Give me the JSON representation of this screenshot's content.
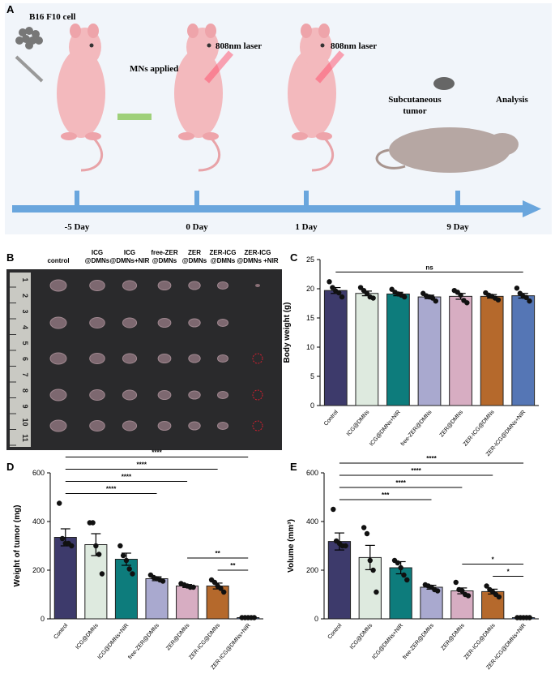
{
  "panel_labels": [
    "A",
    "B",
    "C",
    "D",
    "E"
  ],
  "schematic": {
    "cell_label": "B16 F10 cell",
    "mns_label": "MNs applied",
    "laser_labels": [
      "808nm laser",
      "808nm laser"
    ],
    "tumor_label": [
      "Subcutaneous",
      "tumor"
    ],
    "analysis_label": "Analysis",
    "timeline": [
      "-5 Day",
      "0 Day",
      "1 Day",
      "9 Day"
    ]
  },
  "photo": {
    "columns": [
      [
        "control"
      ],
      [
        "ICG",
        "@DMNs"
      ],
      [
        "ICG",
        "@DMNs+NIR"
      ],
      [
        "free-ZER",
        "@DMNs"
      ],
      [
        "ZER",
        "@DMNs"
      ],
      [
        "ZER-ICG",
        "@DMNs"
      ],
      [
        "ZER-ICG",
        "@DMNs +NIR"
      ]
    ],
    "ruler": [
      "1",
      "2",
      "3",
      "4",
      "5",
      "6",
      "7",
      "8",
      "9",
      "10",
      "11"
    ]
  },
  "chart_data": [
    {
      "type": "bar",
      "y_label": "Body weight (g)",
      "categories": [
        "Control",
        "ICG@DMNs",
        "ICG@DMNs+NIR",
        "free-ZER@DMNs",
        "ZER@DMNs",
        "ZER-ICG@DMNs",
        "ZER-ICG@DMNs+NIR"
      ],
      "colors": [
        "#3d3a6b",
        "#deeadf",
        "#0d7c7c",
        "#a9a9cf",
        "#d7adc2",
        "#b5692c",
        "#5576b5"
      ],
      "values": [
        19.7,
        19.2,
        19.1,
        18.6,
        18.7,
        18.7,
        18.8
      ],
      "errors": [
        0.5,
        0.4,
        0.3,
        0.3,
        0.5,
        0.3,
        0.4
      ],
      "points": [
        [
          21.2,
          20.2,
          19.6,
          19.3,
          18.6
        ],
        [
          20.2,
          19.7,
          19.2,
          18.6,
          18.4
        ],
        [
          19.9,
          19.4,
          19.1,
          18.9,
          18.6
        ],
        [
          19.2,
          18.8,
          18.6,
          18.4,
          17.9
        ],
        [
          19.7,
          19.4,
          18.9,
          18.0,
          17.6
        ],
        [
          19.3,
          18.9,
          18.7,
          18.4,
          18.1
        ],
        [
          20.1,
          19.2,
          18.7,
          18.5,
          17.9
        ]
      ],
      "ylim": [
        0,
        25
      ],
      "yticks": [
        0,
        5,
        10,
        15,
        20,
        25
      ],
      "annotations": [
        {
          "between": [
            "Control",
            "ZER-ICG@DMNs+NIR"
          ],
          "label": "ns"
        }
      ]
    },
    {
      "type": "bar",
      "y_label": "Weight of tumor (mg)",
      "categories": [
        "Control",
        "ICG@DMNs",
        "ICG@DMNs+NIR",
        "free-ZER@DMNs",
        "ZER@DMNs",
        "ZER-ICG@DMNs",
        "ZER-ICG@DMNs+NIR"
      ],
      "colors": [
        "#3d3a6b",
        "#deeadf",
        "#0d7c7c",
        "#a9a9cf",
        "#d7adc2",
        "#b5692c",
        "#5576b5"
      ],
      "values": [
        335,
        305,
        245,
        165,
        135,
        135,
        5
      ],
      "errors": [
        35,
        45,
        25,
        8,
        6,
        12,
        1
      ],
      "points": [
        [
          475,
          330,
          310,
          310,
          300
        ],
        [
          395,
          395,
          300,
          265,
          185
        ],
        [
          300,
          260,
          240,
          205,
          185
        ],
        [
          180,
          170,
          165,
          160,
          155
        ],
        [
          145,
          140,
          135,
          130,
          130
        ],
        [
          160,
          150,
          135,
          125,
          110
        ],
        [
          5,
          5,
          5,
          5,
          5
        ]
      ],
      "ylim": [
        0,
        600
      ],
      "yticks": [
        0,
        200,
        400,
        600
      ],
      "annotations": [
        {
          "between": [
            "Control",
            "ZER-ICG@DMNs+NIR"
          ],
          "label": "****"
        },
        {
          "between": [
            "Control",
            "ZER-ICG@DMNs"
          ],
          "label": "****"
        },
        {
          "between": [
            "Control",
            "ZER@DMNs"
          ],
          "label": "****"
        },
        {
          "between": [
            "Control",
            "free-ZER@DMNs"
          ],
          "label": "****"
        },
        {
          "between": [
            "ZER@DMNs",
            "ZER-ICG@DMNs+NIR"
          ],
          "label": "**"
        },
        {
          "between": [
            "ZER-ICG@DMNs",
            "ZER-ICG@DMNs+NIR"
          ],
          "label": "**"
        }
      ]
    },
    {
      "type": "bar",
      "y_label": "Volume (mm³)",
      "categories": [
        "Control",
        "ICG@DMNs",
        "ICG@DMNs+NIR",
        "free-ZER@DMNs",
        "ZER@DMNs",
        "ZER-ICG@DMNs",
        "ZER-ICG@DMNs+NIR"
      ],
      "colors": [
        "#3d3a6b",
        "#deeadf",
        "#0d7c7c",
        "#a9a9cf",
        "#d7adc2",
        "#b5692c",
        "#5576b5"
      ],
      "values": [
        318,
        252,
        210,
        130,
        115,
        112,
        5
      ],
      "errors": [
        35,
        50,
        25,
        8,
        12,
        10,
        1
      ],
      "points": [
        [
          450,
          320,
          310,
          300,
          300
        ],
        [
          375,
          350,
          240,
          200,
          110
        ],
        [
          240,
          230,
          210,
          180,
          160
        ],
        [
          140,
          135,
          130,
          120,
          115
        ],
        [
          150,
          120,
          115,
          100,
          95
        ],
        [
          135,
          120,
          110,
          100,
          90
        ],
        [
          5,
          5,
          5,
          5,
          5
        ]
      ],
      "ylim": [
        0,
        600
      ],
      "yticks": [
        0,
        200,
        400,
        600
      ],
      "annotations": [
        {
          "between": [
            "Control",
            "ZER-ICG@DMNs+NIR"
          ],
          "label": "****"
        },
        {
          "between": [
            "Control",
            "ZER-ICG@DMNs"
          ],
          "label": "****"
        },
        {
          "between": [
            "Control",
            "ZER@DMNs"
          ],
          "label": "****"
        },
        {
          "between": [
            "Control",
            "free-ZER@DMNs"
          ],
          "label": "***"
        },
        {
          "between": [
            "ZER@DMNs",
            "ZER-ICG@DMNs+NIR"
          ],
          "label": "*"
        },
        {
          "between": [
            "ZER-ICG@DMNs",
            "ZER-ICG@DMNs+NIR"
          ],
          "label": "*"
        }
      ]
    }
  ]
}
